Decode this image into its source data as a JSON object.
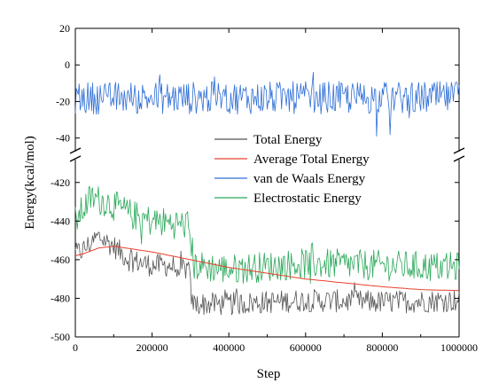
{
  "chart_data": {
    "type": "line",
    "xlabel": "Step",
    "ylabel": "Energy(kcal/mol)",
    "xlim": [
      0,
      1000000
    ],
    "x_ticks": [
      "0",
      "200000",
      "400000",
      "600000",
      "800000",
      "1000000"
    ],
    "x_tick_values": [
      0,
      200000,
      400000,
      600000,
      800000,
      1000000
    ],
    "broken_y_axis": true,
    "upper_panel": {
      "ylim": [
        -45,
        20
      ],
      "y_ticks": [
        "20",
        "0",
        "-20",
        "-40"
      ],
      "y_tick_values": [
        20,
        0,
        -20,
        -40
      ]
    },
    "lower_panel": {
      "ylim": [
        -500,
        -410
      ],
      "y_ticks": [
        "-420",
        "-440",
        "-460",
        "-480",
        "-500"
      ],
      "y_tick_values": [
        -420,
        -440,
        -460,
        -480,
        -500
      ]
    },
    "legend_position": "upper-right of lower panel",
    "series": [
      {
        "name": "Total Energy",
        "color": "#555555",
        "panel": "lower",
        "style": "noisy",
        "profile": [
          [
            0,
            -457
          ],
          [
            20000,
            -455
          ],
          [
            60000,
            -448
          ],
          [
            100000,
            -453
          ],
          [
            140000,
            -460
          ],
          [
            200000,
            -463
          ],
          [
            240000,
            -463
          ],
          [
            295000,
            -465
          ],
          [
            305000,
            -483
          ],
          [
            400000,
            -483
          ],
          [
            600000,
            -481
          ],
          [
            800000,
            -482
          ],
          [
            1000000,
            -481
          ]
        ],
        "noise": 6
      },
      {
        "name": "Average Total Energy",
        "color": "#e8402c",
        "panel": "lower",
        "style": "smooth",
        "profile": [
          [
            0,
            -458
          ],
          [
            20000,
            -457
          ],
          [
            60000,
            -454
          ],
          [
            100000,
            -453
          ],
          [
            200000,
            -456
          ],
          [
            300000,
            -460
          ],
          [
            400000,
            -464
          ],
          [
            500000,
            -467
          ],
          [
            600000,
            -470
          ],
          [
            700000,
            -472
          ],
          [
            800000,
            -474
          ],
          [
            900000,
            -475.5
          ],
          [
            1000000,
            -476
          ]
        ],
        "noise": 0
      },
      {
        "name": "van de Waals Energy",
        "color": "#2f6fd6",
        "panel": "upper",
        "style": "noisy",
        "profile": [
          [
            0,
            -18
          ],
          [
            1000000,
            -18
          ]
        ],
        "noise": 9
      },
      {
        "name": "Electrostatic Energy",
        "color": "#2aa85a",
        "panel": "lower",
        "style": "noisy",
        "profile": [
          [
            0,
            -440
          ],
          [
            40000,
            -428
          ],
          [
            80000,
            -430
          ],
          [
            150000,
            -437
          ],
          [
            200000,
            -440
          ],
          [
            295000,
            -442
          ],
          [
            310000,
            -463
          ],
          [
            400000,
            -465
          ],
          [
            600000,
            -462
          ],
          [
            800000,
            -463
          ],
          [
            1000000,
            -464
          ]
        ],
        "noise": 8
      }
    ]
  }
}
